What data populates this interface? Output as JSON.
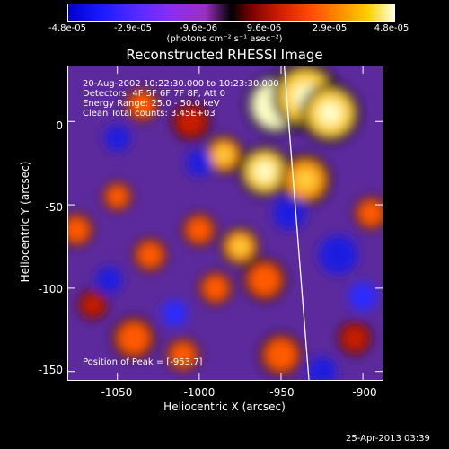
{
  "colorbar": {
    "ticks": [
      "-4.8e-05",
      "-2.9e-05",
      "-9.6e-06",
      "9.6e-06",
      "2.9e-05",
      "4.8e-05"
    ],
    "unit": "(photons cm⁻² s⁻¹ asec⁻²)"
  },
  "chart_data": {
    "type": "heatmap",
    "title": "Reconstructed RHESSI Image",
    "xlabel": "Heliocentric X (arcsec)",
    "ylabel": "Heliocentric Y (arcsec)",
    "xlim": [
      -1080,
      -888
    ],
    "ylim": [
      -155,
      33
    ],
    "xticks": [
      -1050,
      -1000,
      -950,
      -900
    ],
    "yticks": [
      0,
      -50,
      -100,
      -150
    ],
    "color_range": [
      -4.8e-05,
      4.8e-05
    ],
    "peak": [
      -953,
      7
    ],
    "limb_line": [
      [
        -948,
        33
      ],
      [
        -933,
        -155
      ]
    ],
    "annotations": [
      "20-Aug-2002 10:22:30.000 to 10:23:30.000",
      "Detectors: 4F 5F 6F 7F 8F, Att 0",
      "Energy Range: 25.0 - 50.0 keV",
      "Clean    Total counts: 3.45E+03",
      "Position of Peak = [-953,7]"
    ],
    "blobs": [
      {
        "x": -953,
        "y": 10,
        "v": 1.0,
        "r": 14
      },
      {
        "x": -935,
        "y": 15,
        "v": 0.85,
        "r": 16
      },
      {
        "x": -920,
        "y": 5,
        "v": 0.8,
        "r": 14
      },
      {
        "x": -960,
        "y": -30,
        "v": 0.75,
        "r": 12
      },
      {
        "x": -935,
        "y": -35,
        "v": 0.6,
        "r": 12
      },
      {
        "x": -985,
        "y": -20,
        "v": 0.6,
        "r": 9
      },
      {
        "x": -1005,
        "y": 0,
        "v": 0.4,
        "r": 9
      },
      {
        "x": -1035,
        "y": 10,
        "v": 0.5,
        "r": 8
      },
      {
        "x": -1050,
        "y": -45,
        "v": 0.5,
        "r": 7
      },
      {
        "x": -1075,
        "y": -65,
        "v": 0.55,
        "r": 8
      },
      {
        "x": -1030,
        "y": -80,
        "v": 0.5,
        "r": 8
      },
      {
        "x": -1000,
        "y": -65,
        "v": 0.5,
        "r": 8
      },
      {
        "x": -975,
        "y": -75,
        "v": 0.65,
        "r": 9
      },
      {
        "x": -960,
        "y": -95,
        "v": 0.55,
        "r": 10
      },
      {
        "x": -990,
        "y": -100,
        "v": 0.5,
        "r": 8
      },
      {
        "x": -1040,
        "y": -130,
        "v": 0.55,
        "r": 10
      },
      {
        "x": -1010,
        "y": -140,
        "v": 0.45,
        "r": 8
      },
      {
        "x": -950,
        "y": -140,
        "v": 0.5,
        "r": 10
      },
      {
        "x": -905,
        "y": -130,
        "v": 0.4,
        "r": 8
      },
      {
        "x": -895,
        "y": -55,
        "v": 0.55,
        "r": 8
      },
      {
        "x": -1065,
        "y": -110,
        "v": 0.4,
        "r": 7
      },
      {
        "x": -1050,
        "y": -10,
        "v": -0.6,
        "r": 8
      },
      {
        "x": -1000,
        "y": -25,
        "v": -0.55,
        "r": 8
      },
      {
        "x": -945,
        "y": -55,
        "v": -0.7,
        "r": 10
      },
      {
        "x": -915,
        "y": -80,
        "v": -0.6,
        "r": 12
      },
      {
        "x": -1055,
        "y": -95,
        "v": -0.55,
        "r": 8
      },
      {
        "x": -1015,
        "y": -115,
        "v": -0.5,
        "r": 8
      },
      {
        "x": -925,
        "y": -150,
        "v": -0.55,
        "r": 9
      },
      {
        "x": -900,
        "y": -105,
        "v": -0.5,
        "r": 9
      }
    ]
  },
  "timestamp": "25-Apr-2013 03:39"
}
